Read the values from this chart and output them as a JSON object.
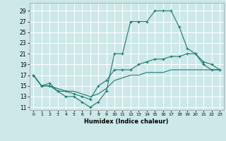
{
  "xlabel": "Humidex (Indice chaleur)",
  "bg_color": "#cce8e8",
  "grid_color": "#ffffff",
  "line_color": "#1a7a6e",
  "xlim": [
    -0.5,
    23.5
  ],
  "ylim": [
    10.5,
    30.5
  ],
  "xticks": [
    0,
    1,
    2,
    3,
    4,
    5,
    6,
    7,
    8,
    9,
    10,
    11,
    12,
    13,
    14,
    15,
    16,
    17,
    18,
    19,
    20,
    21,
    22,
    23
  ],
  "yticks": [
    11,
    13,
    15,
    17,
    19,
    21,
    23,
    25,
    27,
    29
  ],
  "line1_x": [
    0,
    1,
    2,
    3,
    4,
    5,
    6,
    7,
    8,
    9,
    10,
    11,
    12,
    13,
    14,
    15,
    16,
    17,
    18,
    19,
    20,
    21,
    22,
    23
  ],
  "line1_y": [
    17,
    15,
    15,
    14,
    13,
    13,
    12,
    11,
    12,
    14,
    21,
    21,
    27,
    27,
    27,
    29,
    29,
    29,
    26,
    22,
    21,
    19,
    18,
    18
  ],
  "line2_x": [
    0,
    1,
    2,
    3,
    4,
    5,
    6,
    7,
    8,
    9,
    10,
    11,
    12,
    13,
    14,
    15,
    16,
    17,
    18,
    19,
    20,
    21,
    22,
    23
  ],
  "line2_y": [
    17,
    15,
    15.5,
    14,
    14,
    13.5,
    13,
    12.5,
    15,
    16,
    18,
    18,
    18,
    19,
    19.5,
    20,
    20,
    20.5,
    20.5,
    21,
    21,
    19.5,
    19,
    18
  ],
  "line3_x": [
    0,
    1,
    2,
    3,
    4,
    5,
    6,
    7,
    8,
    9,
    10,
    11,
    12,
    13,
    14,
    15,
    16,
    17,
    18,
    19,
    20,
    21,
    22,
    23
  ],
  "line3_y": [
    17,
    15,
    15,
    14.5,
    14,
    14,
    13.5,
    13,
    13.5,
    14.5,
    16,
    16.5,
    17,
    17,
    17.5,
    17.5,
    17.5,
    18,
    18,
    18,
    18,
    18,
    18,
    18
  ]
}
